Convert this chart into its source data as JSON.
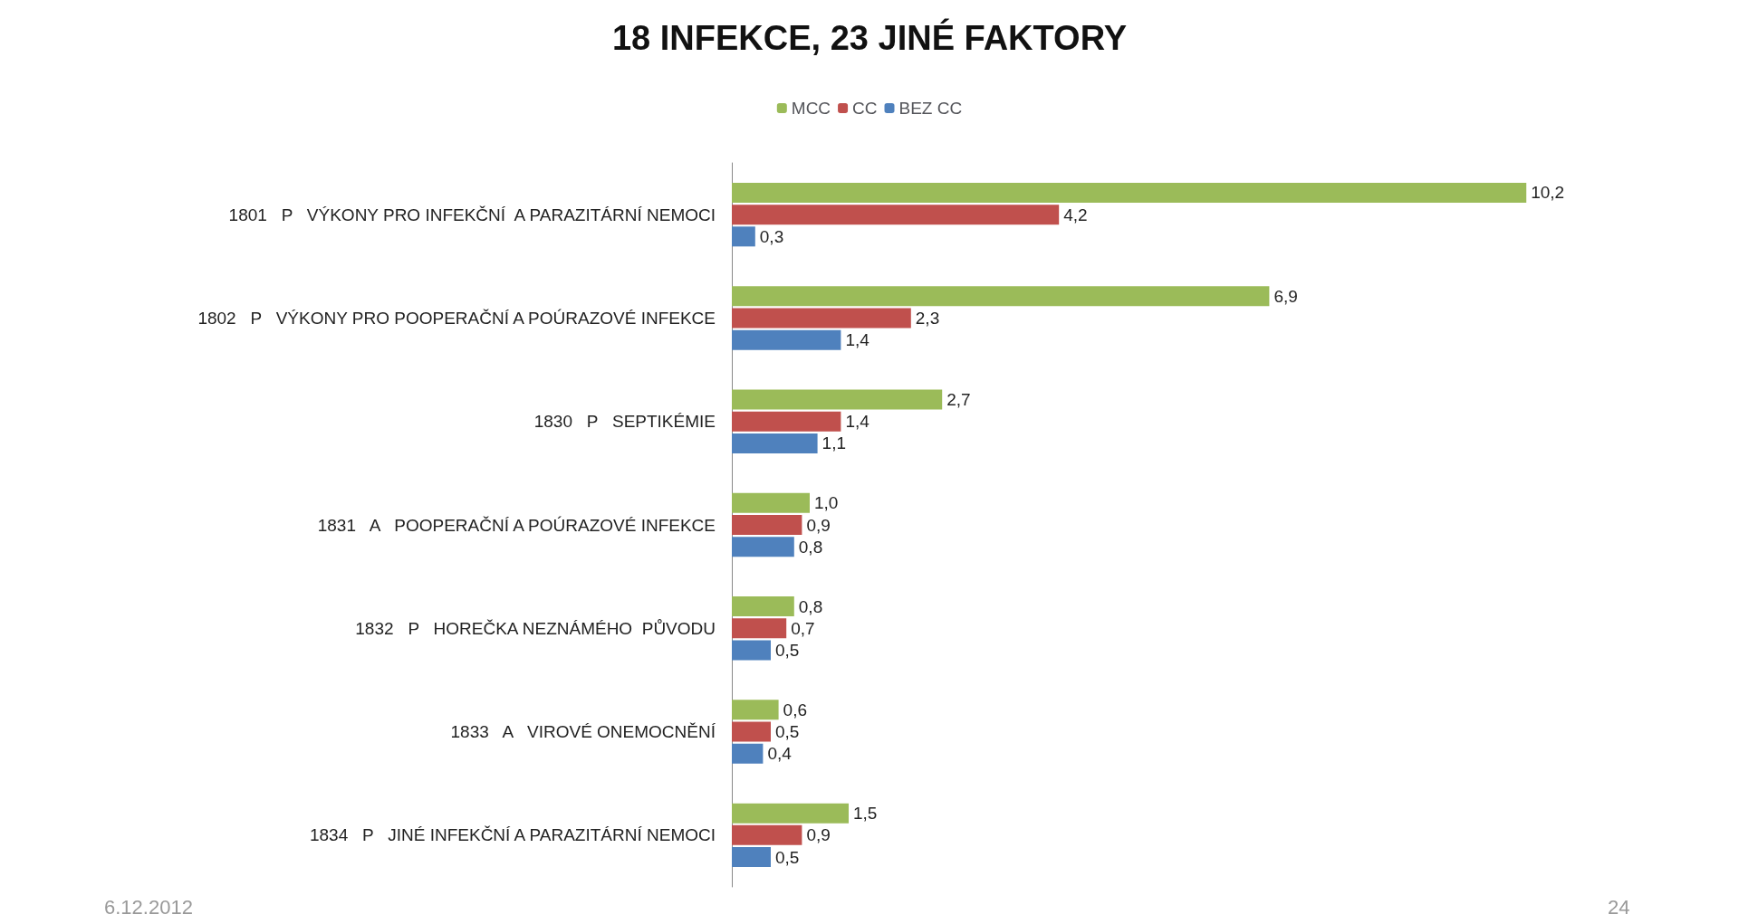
{
  "chart_data": {
    "type": "bar",
    "orientation": "horizontal",
    "title": "18 INFEKCE, 23 JINÉ FAKTORY",
    "categories": [
      "1801   P   VÝKONY PRO INFEKČNÍ  A PARAZITÁRNÍ NEMOCI",
      "1802   P   VÝKONY PRO POOPERAČNÍ A POÚRAZOVÉ INFEKCE",
      "1830   P   SEPTIKÉMIE",
      "1831   A   POOPERAČNÍ A POÚRAZOVÉ INFEKCE",
      "1832   P   HOREČKA NEZNÁMÉHO  PŮVODU",
      "1833   A   VIROVÉ ONEMOCNĚNÍ",
      "1834   P   JINÉ INFEKČNÍ A PARAZITÁRNÍ NEMOCI"
    ],
    "series": [
      {
        "name": "MCC",
        "color": "#9bbb59",
        "values": [
          10.2,
          6.9,
          2.7,
          1.0,
          0.8,
          0.6,
          1.5
        ],
        "value_labels": [
          "10,2",
          "6,9",
          "2,7",
          "1,0",
          "0,8",
          "0,6",
          "1,5"
        ]
      },
      {
        "name": "CC",
        "color": "#c0504d",
        "values": [
          4.2,
          2.3,
          1.4,
          0.9,
          0.7,
          0.5,
          0.9
        ],
        "value_labels": [
          "4,2",
          "2,3",
          "1,4",
          "0,9",
          "0,7",
          "0,5",
          "0,9"
        ]
      },
      {
        "name": "BEZ CC",
        "color": "#4f81bd",
        "values": [
          0.3,
          1.4,
          1.1,
          0.8,
          0.5,
          0.4,
          0.5
        ],
        "value_labels": [
          "0,3",
          "1,4",
          "1,1",
          "0,8",
          "0,5",
          "0,4",
          "0,5"
        ]
      }
    ],
    "legend": "top",
    "grid": false,
    "annotations": [
      "6.12.2012",
      "24"
    ]
  }
}
